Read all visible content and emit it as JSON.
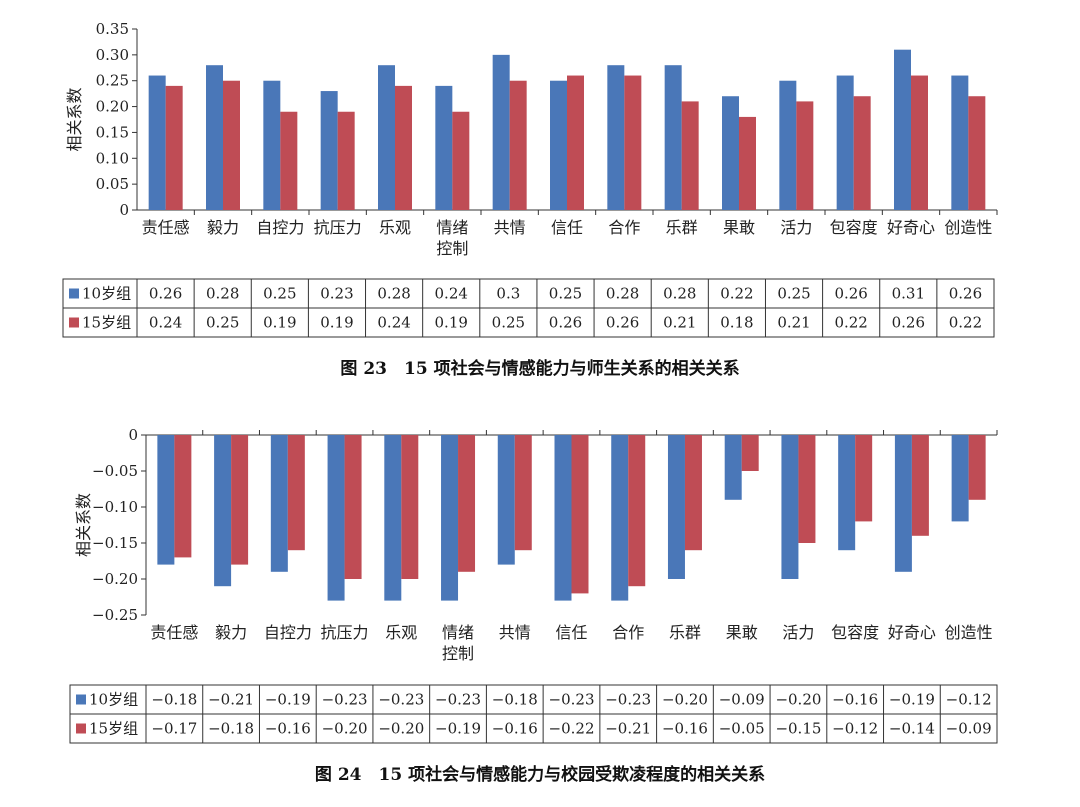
{
  "colors": {
    "series1": "#4a77b8",
    "series2": "#bf4c55"
  },
  "chart_data": [
    {
      "type": "bar",
      "caption": "图 23　15 项社会与情感能力与师生关系的相关关系",
      "ylabel": "相关系数",
      "ylim": [
        0,
        0.35
      ],
      "yticks": [
        "0.35",
        "0.30",
        "0.25",
        "0.20",
        "0.15",
        "0.10",
        "0.05",
        "0"
      ],
      "categories": [
        "责任感",
        "毅力",
        "自控力",
        "抗压力",
        "乐观",
        "情绪\n控制",
        "共情",
        "信任",
        "合作",
        "乐群",
        "果敢",
        "活力",
        "包容度",
        "好奇心",
        "创造性"
      ],
      "series": [
        {
          "name": "10岁组",
          "values": [
            0.26,
            0.28,
            0.25,
            0.23,
            0.28,
            0.24,
            0.3,
            0.25,
            0.28,
            0.28,
            0.22,
            0.25,
            0.26,
            0.31,
            0.26
          ],
          "labels": [
            "0.26",
            "0.28",
            "0.25",
            "0.23",
            "0.28",
            "0.24",
            "0.3",
            "0.25",
            "0.28",
            "0.28",
            "0.22",
            "0.25",
            "0.26",
            "0.31",
            "0.26"
          ]
        },
        {
          "name": "15岁组",
          "values": [
            0.24,
            0.25,
            0.19,
            0.19,
            0.24,
            0.19,
            0.25,
            0.26,
            0.26,
            0.21,
            0.18,
            0.21,
            0.22,
            0.26,
            0.22
          ],
          "labels": [
            "0.24",
            "0.25",
            "0.19",
            "0.19",
            "0.24",
            "0.19",
            "0.25",
            "0.26",
            "0.26",
            "0.21",
            "0.18",
            "0.21",
            "0.22",
            "0.26",
            "0.22"
          ]
        }
      ]
    },
    {
      "type": "bar",
      "caption": "图 24　15 项社会与情感能力与校园受欺凌程度的相关关系",
      "ylabel": "相关系数",
      "ylim": [
        -0.25,
        0
      ],
      "yticks": [
        "0",
        "−0.05",
        "−0.10",
        "−0.15",
        "−0.20",
        "−0.25"
      ],
      "categories": [
        "责任感",
        "毅力",
        "自控力",
        "抗压力",
        "乐观",
        "情绪\n控制",
        "共情",
        "信任",
        "合作",
        "乐群",
        "果敢",
        "活力",
        "包容度",
        "好奇心",
        "创造性"
      ],
      "series": [
        {
          "name": "10岁组",
          "values": [
            -0.18,
            -0.21,
            -0.19,
            -0.23,
            -0.23,
            -0.23,
            -0.18,
            -0.23,
            -0.23,
            -0.2,
            -0.09,
            -0.2,
            -0.16,
            -0.19,
            -0.12
          ],
          "labels": [
            "−0.18",
            "−0.21",
            "−0.19",
            "−0.23",
            "−0.23",
            "−0.23",
            "−0.18",
            "−0.23",
            "−0.23",
            "−0.20",
            "−0.09",
            "−0.20",
            "−0.16",
            "−0.19",
            "−0.12"
          ]
        },
        {
          "name": "15岁组",
          "values": [
            -0.17,
            -0.18,
            -0.16,
            -0.2,
            -0.2,
            -0.19,
            -0.16,
            -0.22,
            -0.21,
            -0.16,
            -0.05,
            -0.15,
            -0.12,
            -0.14,
            -0.09
          ],
          "labels": [
            "−0.17",
            "−0.18",
            "−0.16",
            "−0.20",
            "−0.20",
            "−0.19",
            "−0.16",
            "−0.22",
            "−0.21",
            "−0.16",
            "−0.05",
            "−0.15",
            "−0.12",
            "−0.14",
            "−0.09"
          ]
        }
      ]
    }
  ]
}
